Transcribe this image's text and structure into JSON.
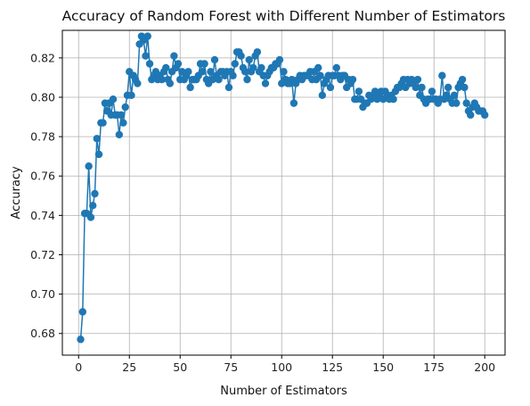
{
  "chart_data": {
    "type": "line",
    "title": "Accuracy of Random Forest with Different Number of Estimators",
    "xlabel": "Number of Estimators",
    "ylabel": "Accuracy",
    "xlim": [
      -8,
      210
    ],
    "ylim": [
      0.669,
      0.834
    ],
    "xticks": [
      0,
      25,
      50,
      75,
      100,
      125,
      150,
      175,
      200
    ],
    "yticks": [
      0.68,
      0.7,
      0.72,
      0.74,
      0.76,
      0.78,
      0.8,
      0.82
    ],
    "ytick_labels": [
      "0.68",
      "0.70",
      "0.72",
      "0.74",
      "0.76",
      "0.78",
      "0.80",
      "0.82"
    ],
    "grid": true,
    "marker": "circle",
    "color": "#1f77b4",
    "series": [
      {
        "x": [
          1,
          2,
          3,
          4,
          5,
          6,
          7,
          8,
          9,
          10,
          11,
          12,
          13,
          14,
          15,
          16,
          17,
          18,
          19,
          20,
          21,
          22,
          23,
          24,
          25,
          26,
          27,
          28,
          29,
          30,
          31,
          32,
          33,
          34,
          35,
          36,
          37,
          38,
          39,
          40,
          41,
          42,
          43,
          44,
          45,
          46,
          47,
          48,
          49,
          50,
          51,
          52,
          53,
          54,
          55,
          56,
          57,
          58,
          59,
          60,
          61,
          62,
          63,
          64,
          65,
          66,
          67,
          68,
          69,
          70,
          71,
          72,
          73,
          74,
          75,
          76,
          77,
          78,
          79,
          80,
          81,
          82,
          83,
          84,
          85,
          86,
          87,
          88,
          89,
          90,
          91,
          92,
          93,
          94,
          95,
          96,
          97,
          98,
          99,
          100,
          101,
          102,
          103,
          104,
          105,
          106,
          107,
          108,
          109,
          110,
          111,
          112,
          113,
          114,
          115,
          116,
          117,
          118,
          119,
          120,
          121,
          122,
          123,
          124,
          125,
          126,
          127,
          128,
          129,
          130,
          131,
          132,
          133,
          134,
          135,
          136,
          137,
          138,
          139,
          140,
          141,
          142,
          143,
          144,
          145,
          146,
          147,
          148,
          149,
          150,
          151,
          152,
          153,
          154,
          155,
          156,
          157,
          158,
          159,
          160,
          161,
          162,
          163,
          164,
          165,
          166,
          167,
          168,
          169,
          170,
          171,
          172,
          173,
          174,
          175,
          176,
          177,
          178,
          179,
          180,
          181,
          182,
          183,
          184,
          185,
          186,
          187,
          188,
          189,
          190,
          191,
          192,
          193,
          194,
          195,
          196,
          197,
          198,
          199,
          200
        ],
        "values": [
          0.677,
          0.691,
          0.741,
          0.741,
          0.765,
          0.739,
          0.745,
          0.751,
          0.779,
          0.771,
          0.787,
          0.787,
          0.797,
          0.793,
          0.797,
          0.791,
          0.799,
          0.791,
          0.791,
          0.781,
          0.791,
          0.787,
          0.795,
          0.801,
          0.813,
          0.801,
          0.811,
          0.809,
          0.807,
          0.827,
          0.831,
          0.829,
          0.821,
          0.831,
          0.817,
          0.809,
          0.811,
          0.813,
          0.809,
          0.811,
          0.809,
          0.813,
          0.815,
          0.809,
          0.807,
          0.813,
          0.821,
          0.815,
          0.817,
          0.809,
          0.813,
          0.809,
          0.811,
          0.813,
          0.805,
          0.809,
          0.809,
          0.809,
          0.811,
          0.817,
          0.813,
          0.817,
          0.809,
          0.807,
          0.813,
          0.809,
          0.819,
          0.811,
          0.809,
          0.813,
          0.813,
          0.811,
          0.813,
          0.805,
          0.813,
          0.811,
          0.817,
          0.823,
          0.823,
          0.821,
          0.815,
          0.813,
          0.809,
          0.819,
          0.813,
          0.815,
          0.821,
          0.823,
          0.813,
          0.815,
          0.811,
          0.807,
          0.811,
          0.813,
          0.815,
          0.815,
          0.817,
          0.817,
          0.819,
          0.807,
          0.813,
          0.809,
          0.807,
          0.807,
          0.809,
          0.797,
          0.807,
          0.809,
          0.811,
          0.809,
          0.811,
          0.811,
          0.811,
          0.813,
          0.809,
          0.813,
          0.809,
          0.815,
          0.811,
          0.801,
          0.807,
          0.809,
          0.811,
          0.805,
          0.811,
          0.811,
          0.815,
          0.811,
          0.809,
          0.811,
          0.811,
          0.805,
          0.809,
          0.807,
          0.809,
          0.799,
          0.799,
          0.803,
          0.799,
          0.795,
          0.797,
          0.797,
          0.801,
          0.799,
          0.801,
          0.803,
          0.799,
          0.801,
          0.803,
          0.799,
          0.803,
          0.801,
          0.799,
          0.801,
          0.799,
          0.803,
          0.805,
          0.805,
          0.807,
          0.809,
          0.805,
          0.809,
          0.807,
          0.809,
          0.807,
          0.805,
          0.809,
          0.801,
          0.805,
          0.799,
          0.797,
          0.799,
          0.799,
          0.803,
          0.799,
          0.799,
          0.797,
          0.799,
          0.811,
          0.799,
          0.801,
          0.805,
          0.799,
          0.797,
          0.801,
          0.797,
          0.805,
          0.807,
          0.809,
          0.805,
          0.797,
          0.793,
          0.791,
          0.795,
          0.797,
          0.795,
          0.793,
          0.793,
          0.793,
          0.791
        ]
      }
    ]
  }
}
